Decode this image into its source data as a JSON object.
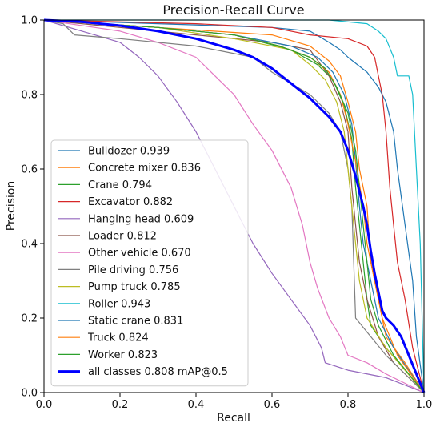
{
  "chart_data": {
    "type": "line",
    "title": "Precision-Recall Curve",
    "xlabel": "Recall",
    "ylabel": "Precision",
    "xlim": [
      0,
      1
    ],
    "ylim": [
      0,
      1
    ],
    "x_ticks": [
      "0.0",
      "0.2",
      "0.4",
      "0.6",
      "0.8",
      "1.0"
    ],
    "y_ticks": [
      "0.0",
      "0.2",
      "0.4",
      "0.6",
      "0.8",
      "1.0"
    ],
    "grid": false,
    "legend_position": "lower-left",
    "series": [
      {
        "name": "Bulldozer 0.939",
        "color": "#1f77b4",
        "width": 1.2,
        "points": [
          [
            0,
            1
          ],
          [
            0.3,
            0.99
          ],
          [
            0.6,
            0.98
          ],
          [
            0.7,
            0.97
          ],
          [
            0.75,
            0.94
          ],
          [
            0.78,
            0.92
          ],
          [
            0.8,
            0.9
          ],
          [
            0.85,
            0.86
          ],
          [
            0.88,
            0.82
          ],
          [
            0.9,
            0.78
          ],
          [
            0.92,
            0.7
          ],
          [
            0.93,
            0.6
          ],
          [
            0.95,
            0.45
          ],
          [
            0.97,
            0.3
          ],
          [
            0.98,
            0.15
          ],
          [
            1,
            0
          ]
        ]
      },
      {
        "name": "Concrete mixer 0.836",
        "color": "#ff7f0e",
        "width": 1.2,
        "points": [
          [
            0,
            1
          ],
          [
            0.3,
            0.98
          ],
          [
            0.6,
            0.96
          ],
          [
            0.7,
            0.93
          ],
          [
            0.75,
            0.89
          ],
          [
            0.78,
            0.85
          ],
          [
            0.8,
            0.78
          ],
          [
            0.82,
            0.7
          ],
          [
            0.83,
            0.6
          ],
          [
            0.85,
            0.5
          ],
          [
            0.86,
            0.35
          ],
          [
            0.88,
            0.25
          ],
          [
            0.9,
            0.15
          ],
          [
            0.95,
            0.08
          ],
          [
            1,
            0
          ]
        ]
      },
      {
        "name": "Crane 0.794",
        "color": "#2ca02c",
        "width": 1.2,
        "points": [
          [
            0,
            1
          ],
          [
            0.3,
            0.98
          ],
          [
            0.5,
            0.96
          ],
          [
            0.65,
            0.92
          ],
          [
            0.72,
            0.88
          ],
          [
            0.76,
            0.84
          ],
          [
            0.79,
            0.77
          ],
          [
            0.81,
            0.68
          ],
          [
            0.82,
            0.55
          ],
          [
            0.83,
            0.45
          ],
          [
            0.84,
            0.35
          ],
          [
            0.85,
            0.25
          ],
          [
            0.86,
            0.18
          ],
          [
            0.9,
            0.12
          ],
          [
            0.95,
            0.06
          ],
          [
            1,
            0
          ]
        ]
      },
      {
        "name": "Excavator 0.882",
        "color": "#d62728",
        "width": 1.2,
        "points": [
          [
            0,
            1
          ],
          [
            0.4,
            0.99
          ],
          [
            0.6,
            0.98
          ],
          [
            0.7,
            0.96
          ],
          [
            0.8,
            0.95
          ],
          [
            0.85,
            0.93
          ],
          [
            0.87,
            0.9
          ],
          [
            0.88,
            0.85
          ],
          [
            0.89,
            0.8
          ],
          [
            0.9,
            0.7
          ],
          [
            0.91,
            0.55
          ],
          [
            0.92,
            0.45
          ],
          [
            0.93,
            0.35
          ],
          [
            0.95,
            0.25
          ],
          [
            0.97,
            0.12
          ],
          [
            1,
            0
          ]
        ]
      },
      {
        "name": "Hanging head 0.609",
        "color": "#9467bd",
        "width": 1.2,
        "points": [
          [
            0,
            1
          ],
          [
            0.1,
            0.97
          ],
          [
            0.2,
            0.94
          ],
          [
            0.25,
            0.9
          ],
          [
            0.3,
            0.85
          ],
          [
            0.35,
            0.78
          ],
          [
            0.4,
            0.7
          ],
          [
            0.45,
            0.6
          ],
          [
            0.5,
            0.5
          ],
          [
            0.55,
            0.4
          ],
          [
            0.6,
            0.32
          ],
          [
            0.65,
            0.25
          ],
          [
            0.7,
            0.18
          ],
          [
            0.73,
            0.12
          ],
          [
            0.74,
            0.08
          ],
          [
            0.8,
            0.06
          ],
          [
            0.9,
            0.04
          ],
          [
            1,
            0
          ]
        ]
      },
      {
        "name": "Loader 0.812",
        "color": "#8c564b",
        "width": 1.2,
        "points": [
          [
            0,
            1
          ],
          [
            0.2,
            0.98
          ],
          [
            0.4,
            0.96
          ],
          [
            0.6,
            0.94
          ],
          [
            0.7,
            0.92
          ],
          [
            0.75,
            0.85
          ],
          [
            0.78,
            0.78
          ],
          [
            0.8,
            0.7
          ],
          [
            0.81,
            0.55
          ],
          [
            0.82,
            0.45
          ],
          [
            0.83,
            0.35
          ],
          [
            0.85,
            0.25
          ],
          [
            0.88,
            0.15
          ],
          [
            0.92,
            0.08
          ],
          [
            1,
            0
          ]
        ]
      },
      {
        "name": "Other vehicle 0.670",
        "color": "#e377c2",
        "width": 1.2,
        "points": [
          [
            0,
            1
          ],
          [
            0.2,
            0.97
          ],
          [
            0.3,
            0.94
          ],
          [
            0.4,
            0.9
          ],
          [
            0.45,
            0.85
          ],
          [
            0.5,
            0.8
          ],
          [
            0.55,
            0.72
          ],
          [
            0.6,
            0.65
          ],
          [
            0.65,
            0.55
          ],
          [
            0.68,
            0.45
          ],
          [
            0.7,
            0.35
          ],
          [
            0.72,
            0.28
          ],
          [
            0.75,
            0.2
          ],
          [
            0.78,
            0.15
          ],
          [
            0.8,
            0.1
          ],
          [
            0.85,
            0.08
          ],
          [
            0.9,
            0.05
          ],
          [
            1,
            0
          ]
        ]
      },
      {
        "name": "Pile driving 0.756",
        "color": "#7f7f7f",
        "width": 1.2,
        "points": [
          [
            0,
            1
          ],
          [
            0.05,
            0.99
          ],
          [
            0.08,
            0.96
          ],
          [
            0.2,
            0.95
          ],
          [
            0.4,
            0.93
          ],
          [
            0.55,
            0.9
          ],
          [
            0.6,
            0.86
          ],
          [
            0.65,
            0.83
          ],
          [
            0.7,
            0.8
          ],
          [
            0.75,
            0.75
          ],
          [
            0.78,
            0.7
          ],
          [
            0.8,
            0.6
          ],
          [
            0.81,
            0.5
          ],
          [
            0.82,
            0.2
          ],
          [
            0.9,
            0.1
          ],
          [
            1,
            0
          ]
        ]
      },
      {
        "name": "Pump truck 0.785",
        "color": "#bcbd22",
        "width": 1.2,
        "points": [
          [
            0,
            1
          ],
          [
            0.3,
            0.98
          ],
          [
            0.5,
            0.95
          ],
          [
            0.65,
            0.92
          ],
          [
            0.7,
            0.88
          ],
          [
            0.74,
            0.84
          ],
          [
            0.77,
            0.78
          ],
          [
            0.79,
            0.7
          ],
          [
            0.8,
            0.6
          ],
          [
            0.81,
            0.5
          ],
          [
            0.82,
            0.4
          ],
          [
            0.83,
            0.3
          ],
          [
            0.85,
            0.2
          ],
          [
            0.9,
            0.12
          ],
          [
            1,
            0
          ]
        ]
      },
      {
        "name": "Roller 0.943",
        "color": "#17becf",
        "width": 1.2,
        "points": [
          [
            0,
            1
          ],
          [
            0.5,
            1
          ],
          [
            0.75,
            1
          ],
          [
            0.85,
            0.99
          ],
          [
            0.88,
            0.97
          ],
          [
            0.9,
            0.95
          ],
          [
            0.92,
            0.9
          ],
          [
            0.93,
            0.85
          ],
          [
            0.96,
            0.85
          ],
          [
            0.97,
            0.8
          ],
          [
            0.98,
            0.6
          ],
          [
            0.99,
            0.4
          ],
          [
            1,
            0
          ]
        ]
      },
      {
        "name": "Static crane 0.831",
        "color": "#1f77b4",
        "width": 1.2,
        "points": [
          [
            0,
            1
          ],
          [
            0.3,
            0.98
          ],
          [
            0.5,
            0.96
          ],
          [
            0.65,
            0.93
          ],
          [
            0.72,
            0.9
          ],
          [
            0.76,
            0.86
          ],
          [
            0.79,
            0.8
          ],
          [
            0.81,
            0.72
          ],
          [
            0.82,
            0.62
          ],
          [
            0.83,
            0.5
          ],
          [
            0.84,
            0.4
          ],
          [
            0.86,
            0.3
          ],
          [
            0.88,
            0.2
          ],
          [
            0.92,
            0.12
          ],
          [
            1,
            0
          ]
        ]
      },
      {
        "name": "Truck 0.824",
        "color": "#ff7f0e",
        "width": 1.2,
        "points": [
          [
            0,
            1
          ],
          [
            0.3,
            0.98
          ],
          [
            0.5,
            0.96
          ],
          [
            0.62,
            0.93
          ],
          [
            0.7,
            0.9
          ],
          [
            0.75,
            0.86
          ],
          [
            0.78,
            0.8
          ],
          [
            0.8,
            0.72
          ],
          [
            0.82,
            0.62
          ],
          [
            0.84,
            0.5
          ],
          [
            0.85,
            0.4
          ],
          [
            0.87,
            0.3
          ],
          [
            0.89,
            0.2
          ],
          [
            0.93,
            0.1
          ],
          [
            1,
            0
          ]
        ]
      },
      {
        "name": "Worker 0.823",
        "color": "#2ca02c",
        "width": 1.2,
        "points": [
          [
            0,
            1
          ],
          [
            0.3,
            0.98
          ],
          [
            0.5,
            0.96
          ],
          [
            0.62,
            0.93
          ],
          [
            0.7,
            0.9
          ],
          [
            0.74,
            0.87
          ],
          [
            0.77,
            0.82
          ],
          [
            0.8,
            0.75
          ],
          [
            0.82,
            0.65
          ],
          [
            0.83,
            0.55
          ],
          [
            0.84,
            0.45
          ],
          [
            0.85,
            0.35
          ],
          [
            0.86,
            0.25
          ],
          [
            0.88,
            0.18
          ],
          [
            0.92,
            0.1
          ],
          [
            1,
            0
          ]
        ]
      },
      {
        "name": "all classes 0.808 mAP@0.5",
        "color": "#0000ff",
        "width": 3,
        "points": [
          [
            0,
            1
          ],
          [
            0.1,
            0.995
          ],
          [
            0.2,
            0.985
          ],
          [
            0.3,
            0.97
          ],
          [
            0.4,
            0.95
          ],
          [
            0.5,
            0.92
          ],
          [
            0.55,
            0.9
          ],
          [
            0.6,
            0.87
          ],
          [
            0.65,
            0.83
          ],
          [
            0.7,
            0.79
          ],
          [
            0.75,
            0.74
          ],
          [
            0.78,
            0.7
          ],
          [
            0.8,
            0.65
          ],
          [
            0.82,
            0.58
          ],
          [
            0.84,
            0.5
          ],
          [
            0.85,
            0.45
          ],
          [
            0.86,
            0.38
          ],
          [
            0.87,
            0.32
          ],
          [
            0.88,
            0.27
          ],
          [
            0.89,
            0.22
          ],
          [
            0.9,
            0.2
          ],
          [
            0.92,
            0.18
          ],
          [
            0.94,
            0.15
          ],
          [
            0.96,
            0.1
          ],
          [
            0.98,
            0.05
          ],
          [
            1,
            0
          ]
        ]
      }
    ]
  }
}
